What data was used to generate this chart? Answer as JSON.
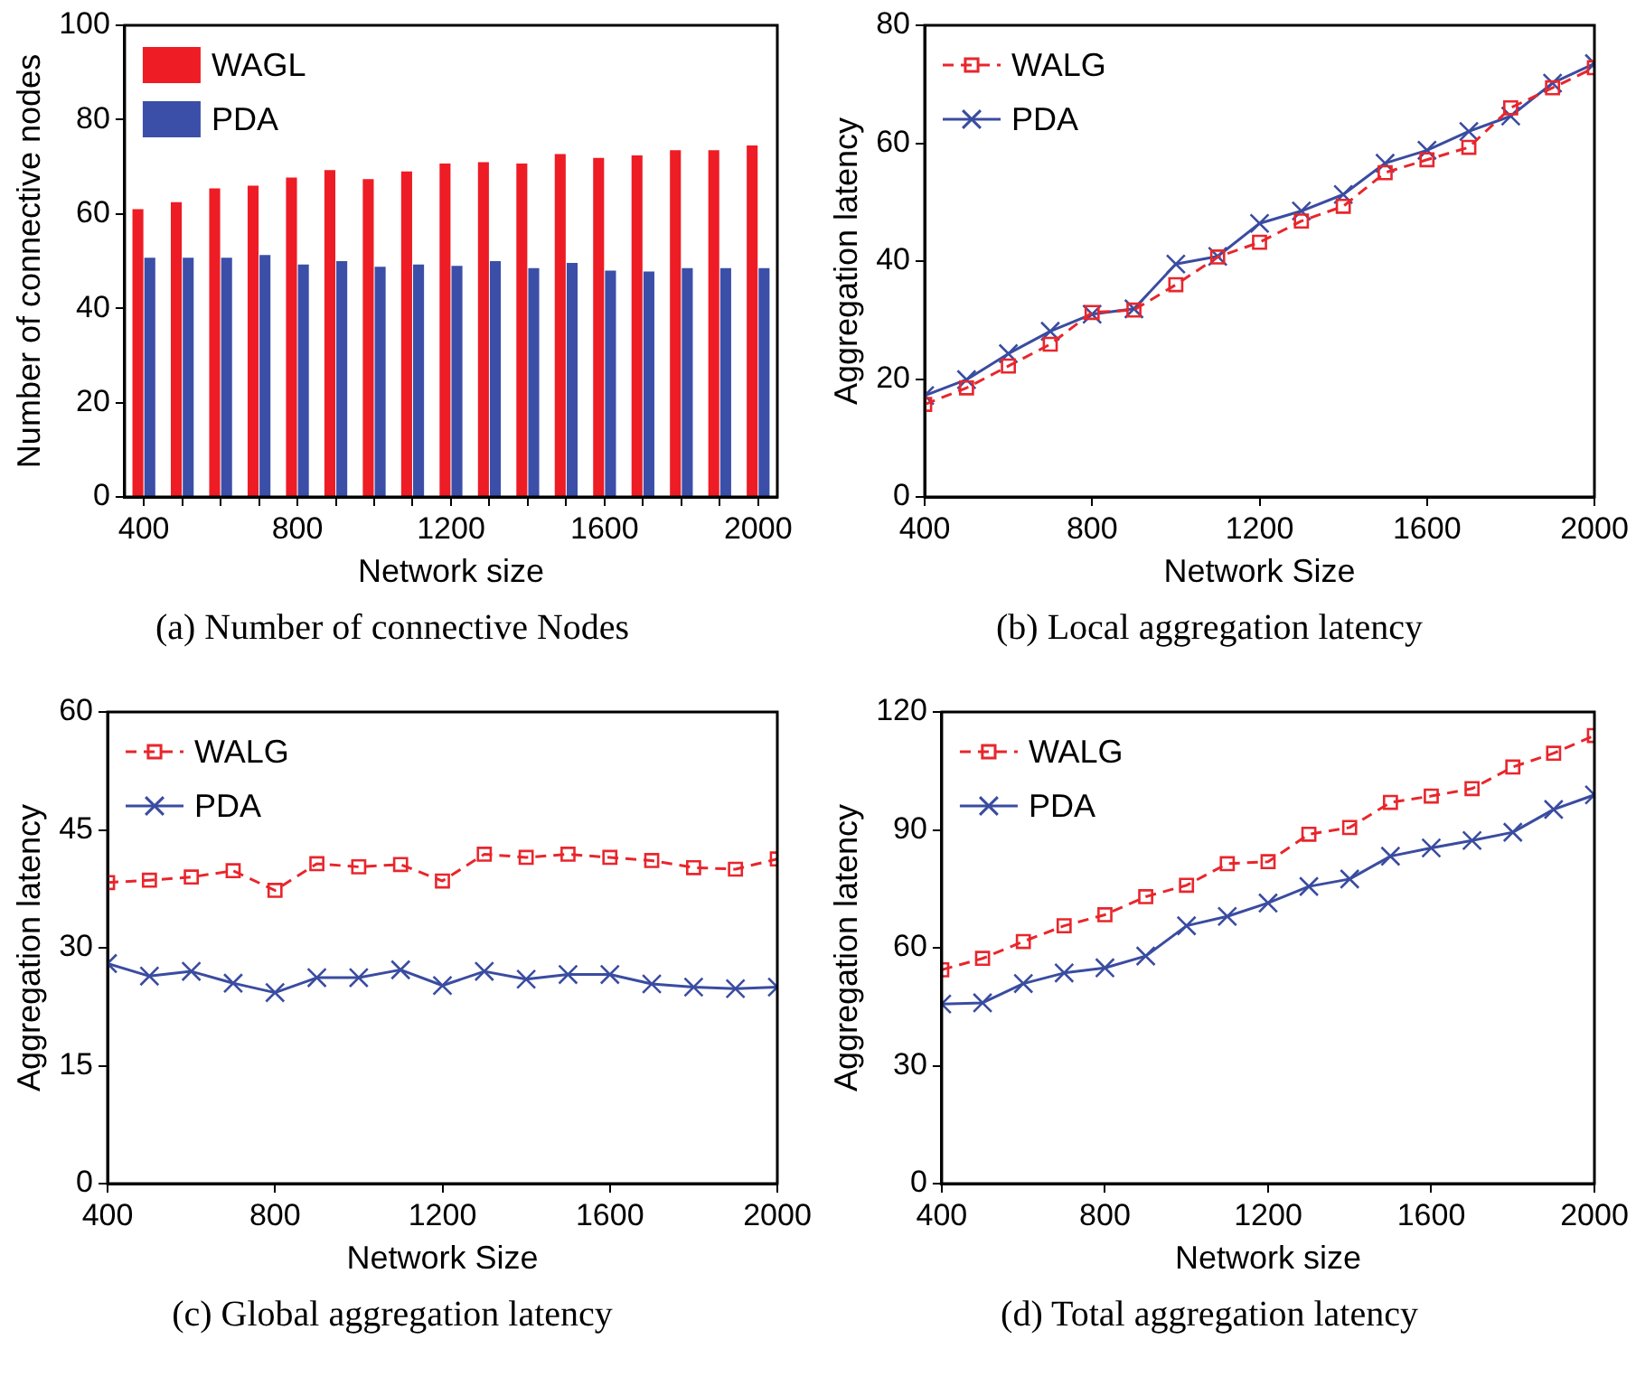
{
  "chart_data": [
    {
      "type": "bar",
      "title": "(a) Number of connective Nodes",
      "xlabel": "Network size",
      "ylabel": "Number of connective nodes",
      "categories": [
        "400",
        null,
        null,
        null,
        "800",
        null,
        null,
        null,
        "1200",
        null,
        null,
        null,
        "1600",
        null,
        null,
        null,
        "2000"
      ],
      "ylim": [
        0,
        100
      ],
      "yticks": [
        0,
        20,
        40,
        60,
        80,
        100
      ],
      "grid": false,
      "legend": "top left",
      "series": [
        {
          "name": "WAGL",
          "color": "#ee1c25",
          "values": [
            61,
            62.5,
            65.4,
            66,
            67.7,
            69.3,
            67.4,
            69,
            70.7,
            71,
            70.7,
            72.7,
            71.9,
            72.4,
            73.5,
            73.5,
            74.5
          ]
        },
        {
          "name": "PDA",
          "color": "#3b4fa8",
          "values": [
            50.7,
            50.7,
            50.7,
            51.3,
            49.3,
            50,
            48.8,
            49.3,
            49,
            50,
            48.5,
            49.6,
            48,
            47.8,
            48.5,
            48.5,
            48.5
          ]
        }
      ]
    },
    {
      "type": "line",
      "title": "(b) Local aggregation latency",
      "xlabel": "Network Size",
      "ylabel": "Aggregation latency",
      "x": [
        400,
        500,
        600,
        700,
        800,
        900,
        1000,
        1100,
        1200,
        1300,
        1400,
        1500,
        1600,
        1700,
        1800,
        1900,
        2000
      ],
      "xlim": [
        400,
        2000
      ],
      "xticks": [
        400,
        800,
        1200,
        1600,
        2000
      ],
      "ylim": [
        0,
        80
      ],
      "yticks": [
        0,
        20,
        40,
        60,
        80
      ],
      "grid": false,
      "legend": "top left",
      "series": [
        {
          "name": "WALG",
          "color": "#e8262c",
          "marker": "square",
          "line_style": "dashed",
          "values": [
            15.7,
            18.5,
            22.2,
            25.9,
            31.3,
            31.7,
            36,
            40.7,
            43.2,
            46.8,
            49.3,
            55,
            57.2,
            59.3,
            66,
            69.4,
            72.8
          ]
        },
        {
          "name": "PDA",
          "color": "#3a4ca0",
          "marker": "cross",
          "line_style": "solid",
          "values": [
            17.2,
            19.9,
            24.3,
            28.1,
            31,
            31.9,
            39.5,
            40.8,
            46.4,
            48.5,
            51.3,
            56.6,
            58.8,
            62,
            64.6,
            70.2,
            73.5
          ]
        }
      ]
    },
    {
      "type": "line",
      "title": "(c) Global aggregation latency",
      "xlabel": "Network Size",
      "ylabel": "Aggregation latency",
      "x": [
        400,
        500,
        600,
        700,
        800,
        900,
        1000,
        1100,
        1200,
        1300,
        1400,
        1500,
        1600,
        1700,
        1800,
        1900,
        2000
      ],
      "xlim": [
        400,
        2000
      ],
      "xticks": [
        400,
        800,
        1200,
        1600,
        2000
      ],
      "ylim": [
        0,
        60
      ],
      "yticks": [
        0,
        15,
        30,
        45,
        60
      ],
      "grid": false,
      "legend": "top left",
      "series": [
        {
          "name": "WALG",
          "color": "#e8262c",
          "marker": "square",
          "line_style": "dashed",
          "values": [
            38.3,
            38.6,
            39,
            39.8,
            37.3,
            40.7,
            40.3,
            40.6,
            38.5,
            41.9,
            41.5,
            41.9,
            41.5,
            41.1,
            40.2,
            40,
            41.3
          ]
        },
        {
          "name": "PDA",
          "color": "#3a4ca0",
          "marker": "cross",
          "line_style": "solid",
          "values": [
            28,
            26.4,
            27,
            25.5,
            24.3,
            26.2,
            26.2,
            27.2,
            25.2,
            27,
            26,
            26.6,
            26.6,
            25.4,
            25,
            24.8,
            25
          ]
        }
      ]
    },
    {
      "type": "line",
      "title": "(d) Total aggregation latency",
      "xlabel": "Network size",
      "ylabel": "Aggregation latency",
      "x": [
        400,
        500,
        600,
        700,
        800,
        900,
        1000,
        1100,
        1200,
        1300,
        1400,
        1500,
        1600,
        1700,
        1800,
        1900,
        2000
      ],
      "xlim": [
        400,
        2000
      ],
      "xticks": [
        400,
        800,
        1200,
        1600,
        2000
      ],
      "ylim": [
        0,
        120
      ],
      "yticks": [
        0,
        30,
        60,
        90,
        120
      ],
      "grid": false,
      "legend": "top left",
      "series": [
        {
          "name": "WALG",
          "color": "#e8262c",
          "marker": "square",
          "line_style": "dashed",
          "values": [
            54.4,
            57.3,
            61.6,
            65.6,
            68.4,
            73,
            75.9,
            81.4,
            81.9,
            88.9,
            90.6,
            97,
            98.6,
            100.5,
            106,
            109.5,
            114
          ]
        },
        {
          "name": "PDA",
          "color": "#3a4ca0",
          "marker": "cross",
          "line_style": "solid",
          "values": [
            45.7,
            46,
            50.9,
            53.6,
            54.9,
            57.9,
            65.6,
            68,
            71.4,
            75.6,
            77.5,
            83.3,
            85.4,
            87.3,
            89.4,
            95.2,
            98.9
          ]
        }
      ]
    }
  ]
}
